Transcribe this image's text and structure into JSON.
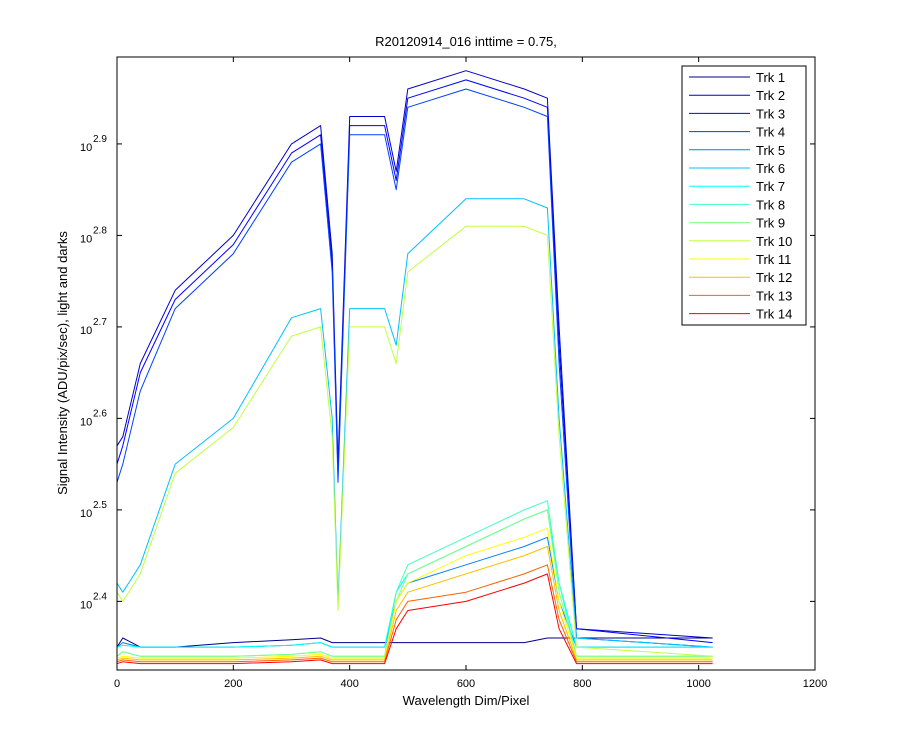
{
  "chart_data": {
    "type": "line",
    "title": "R20120914_016 inttime = 0.75,",
    "xlabel": "Wavelength Dim/Pixel",
    "ylabel": "Signal Intensity (ADU/pix/sec), light and darks",
    "xlim": [
      0,
      1200
    ],
    "ylim_log10": [
      2.325,
      2.995
    ],
    "y_scale": "log10",
    "grid": false,
    "legend_position": "top-right",
    "xticks": [
      {
        "value": 0,
        "label": "0"
      },
      {
        "value": 200,
        "label": "200"
      },
      {
        "value": 400,
        "label": "400"
      },
      {
        "value": 600,
        "label": "600"
      },
      {
        "value": 800,
        "label": "800"
      },
      {
        "value": 1000,
        "label": "1000"
      },
      {
        "value": 1200,
        "label": "1200"
      }
    ],
    "yticks": [
      {
        "value": 2.4,
        "base": "10",
        "exp": "2.4"
      },
      {
        "value": 2.5,
        "base": "10",
        "exp": "2.5"
      },
      {
        "value": 2.6,
        "base": "10",
        "exp": "2.6"
      },
      {
        "value": 2.7,
        "base": "10",
        "exp": "2.7"
      },
      {
        "value": 2.8,
        "base": "10",
        "exp": "2.8"
      },
      {
        "value": 2.9,
        "base": "10",
        "exp": "2.9"
      }
    ],
    "series": [
      {
        "name": "Trk 1",
        "color": "#00008f",
        "x": [
          0,
          10,
          40,
          100,
          200,
          300,
          350,
          370,
          380,
          400,
          460,
          480,
          500,
          600,
          700,
          740,
          760,
          790,
          1024
        ],
        "log10_y": [
          2.35,
          2.36,
          2.35,
          2.35,
          2.355,
          2.358,
          2.36,
          2.355,
          2.355,
          2.355,
          2.355,
          2.355,
          2.355,
          2.355,
          2.355,
          2.36,
          2.36,
          2.36,
          2.36
        ]
      },
      {
        "name": "Trk 2",
        "color": "#0000c8",
        "x": [
          0,
          10,
          40,
          100,
          200,
          300,
          350,
          370,
          380,
          400,
          460,
          480,
          500,
          600,
          700,
          740,
          760,
          790,
          1024
        ],
        "log10_y": [
          2.57,
          2.58,
          2.66,
          2.74,
          2.8,
          2.9,
          2.92,
          2.78,
          2.55,
          2.93,
          2.93,
          2.87,
          2.96,
          2.98,
          2.96,
          2.95,
          2.7,
          2.37,
          2.36
        ]
      },
      {
        "name": "Trk 3",
        "color": "#0000ff",
        "x": [
          0,
          10,
          40,
          100,
          200,
          300,
          350,
          370,
          380,
          400,
          460,
          480,
          500,
          600,
          700,
          740,
          760,
          790,
          1024
        ],
        "log10_y": [
          2.55,
          2.57,
          2.65,
          2.73,
          2.79,
          2.89,
          2.91,
          2.77,
          2.54,
          2.92,
          2.92,
          2.86,
          2.95,
          2.97,
          2.95,
          2.94,
          2.68,
          2.37,
          2.355
        ]
      },
      {
        "name": "Trk 4",
        "color": "#0040ff",
        "x": [
          0,
          10,
          40,
          100,
          200,
          300,
          350,
          370,
          380,
          400,
          460,
          480,
          500,
          600,
          700,
          740,
          760,
          790,
          1024
        ],
        "log10_y": [
          2.53,
          2.55,
          2.63,
          2.72,
          2.78,
          2.88,
          2.9,
          2.76,
          2.53,
          2.91,
          2.91,
          2.85,
          2.94,
          2.96,
          2.94,
          2.93,
          2.66,
          2.36,
          2.35
        ]
      },
      {
        "name": "Trk 5",
        "color": "#0080ff",
        "x": [
          0,
          10,
          40,
          100,
          200,
          300,
          350,
          370,
          380,
          400,
          460,
          480,
          500,
          600,
          700,
          740,
          760,
          790,
          1024
        ],
        "log10_y": [
          2.35,
          2.355,
          2.35,
          2.35,
          2.35,
          2.352,
          2.355,
          2.35,
          2.35,
          2.35,
          2.35,
          2.4,
          2.42,
          2.44,
          2.46,
          2.47,
          2.4,
          2.35,
          2.35
        ]
      },
      {
        "name": "Trk 6",
        "color": "#00c0ff",
        "x": [
          0,
          10,
          40,
          100,
          200,
          300,
          350,
          370,
          380,
          400,
          460,
          480,
          500,
          600,
          700,
          740,
          760,
          790,
          1024
        ],
        "log10_y": [
          2.42,
          2.41,
          2.44,
          2.55,
          2.6,
          2.71,
          2.72,
          2.6,
          2.4,
          2.72,
          2.72,
          2.68,
          2.78,
          2.84,
          2.84,
          2.83,
          2.6,
          2.36,
          2.35
        ]
      },
      {
        "name": "Trk 7",
        "color": "#00ffff",
        "x": [
          0,
          10,
          40,
          100,
          200,
          300,
          350,
          370,
          380,
          400,
          460,
          480,
          500,
          600,
          700,
          740,
          760,
          790,
          1024
        ],
        "log10_y": [
          2.35,
          2.352,
          2.35,
          2.35,
          2.35,
          2.352,
          2.355,
          2.35,
          2.35,
          2.35,
          2.35,
          2.41,
          2.43,
          2.46,
          2.49,
          2.5,
          2.42,
          2.35,
          2.35
        ]
      },
      {
        "name": "Trk 8",
        "color": "#40ffbf",
        "x": [
          0,
          10,
          40,
          100,
          200,
          300,
          350,
          370,
          380,
          400,
          460,
          480,
          500,
          600,
          700,
          740,
          760,
          790,
          1024
        ],
        "log10_y": [
          2.34,
          2.345,
          2.34,
          2.34,
          2.34,
          2.342,
          2.345,
          2.34,
          2.34,
          2.34,
          2.34,
          2.41,
          2.44,
          2.47,
          2.5,
          2.51,
          2.42,
          2.34,
          2.34
        ]
      },
      {
        "name": "Trk 9",
        "color": "#80ff80",
        "x": [
          0,
          10,
          40,
          100,
          200,
          300,
          350,
          370,
          380,
          400,
          460,
          480,
          500,
          600,
          700,
          740,
          760,
          790,
          1024
        ],
        "log10_y": [
          2.34,
          2.345,
          2.34,
          2.34,
          2.34,
          2.342,
          2.345,
          2.34,
          2.34,
          2.34,
          2.34,
          2.4,
          2.43,
          2.46,
          2.49,
          2.5,
          2.41,
          2.34,
          2.34
        ]
      },
      {
        "name": "Trk 10",
        "color": "#c0ff40",
        "x": [
          0,
          10,
          40,
          100,
          200,
          300,
          350,
          370,
          380,
          400,
          460,
          480,
          500,
          600,
          700,
          740,
          760,
          790,
          1024
        ],
        "log10_y": [
          2.41,
          2.4,
          2.43,
          2.54,
          2.59,
          2.69,
          2.7,
          2.58,
          2.39,
          2.7,
          2.7,
          2.66,
          2.76,
          2.81,
          2.81,
          2.8,
          2.58,
          2.35,
          2.34
        ]
      },
      {
        "name": "Trk 11",
        "color": "#ffff00",
        "x": [
          0,
          10,
          40,
          100,
          200,
          300,
          350,
          370,
          380,
          400,
          460,
          480,
          500,
          600,
          700,
          740,
          760,
          790,
          1024
        ],
        "log10_y": [
          2.338,
          2.34,
          2.338,
          2.338,
          2.338,
          2.34,
          2.342,
          2.338,
          2.338,
          2.338,
          2.338,
          2.4,
          2.42,
          2.45,
          2.47,
          2.48,
          2.4,
          2.338,
          2.338
        ]
      },
      {
        "name": "Trk 12",
        "color": "#ffbf00",
        "x": [
          0,
          10,
          40,
          100,
          200,
          300,
          350,
          370,
          380,
          400,
          460,
          480,
          500,
          600,
          700,
          740,
          760,
          790,
          1024
        ],
        "log10_y": [
          2.336,
          2.338,
          2.336,
          2.336,
          2.336,
          2.338,
          2.34,
          2.336,
          2.336,
          2.336,
          2.336,
          2.39,
          2.41,
          2.43,
          2.45,
          2.46,
          2.39,
          2.336,
          2.336
        ]
      },
      {
        "name": "Trk 13",
        "color": "#ff6000",
        "x": [
          0,
          10,
          40,
          100,
          200,
          300,
          350,
          370,
          380,
          400,
          460,
          480,
          500,
          600,
          700,
          740,
          760,
          790,
          1024
        ],
        "log10_y": [
          2.334,
          2.336,
          2.334,
          2.334,
          2.334,
          2.336,
          2.338,
          2.334,
          2.334,
          2.334,
          2.334,
          2.38,
          2.4,
          2.41,
          2.43,
          2.44,
          2.38,
          2.334,
          2.334
        ]
      },
      {
        "name": "Trk 14",
        "color": "#ff0000",
        "x": [
          0,
          10,
          40,
          100,
          200,
          300,
          350,
          370,
          380,
          400,
          460,
          480,
          500,
          600,
          700,
          740,
          760,
          790,
          1024
        ],
        "log10_y": [
          2.332,
          2.334,
          2.332,
          2.332,
          2.332,
          2.334,
          2.336,
          2.332,
          2.332,
          2.332,
          2.332,
          2.37,
          2.39,
          2.4,
          2.42,
          2.43,
          2.37,
          2.332,
          2.332
        ]
      }
    ]
  }
}
